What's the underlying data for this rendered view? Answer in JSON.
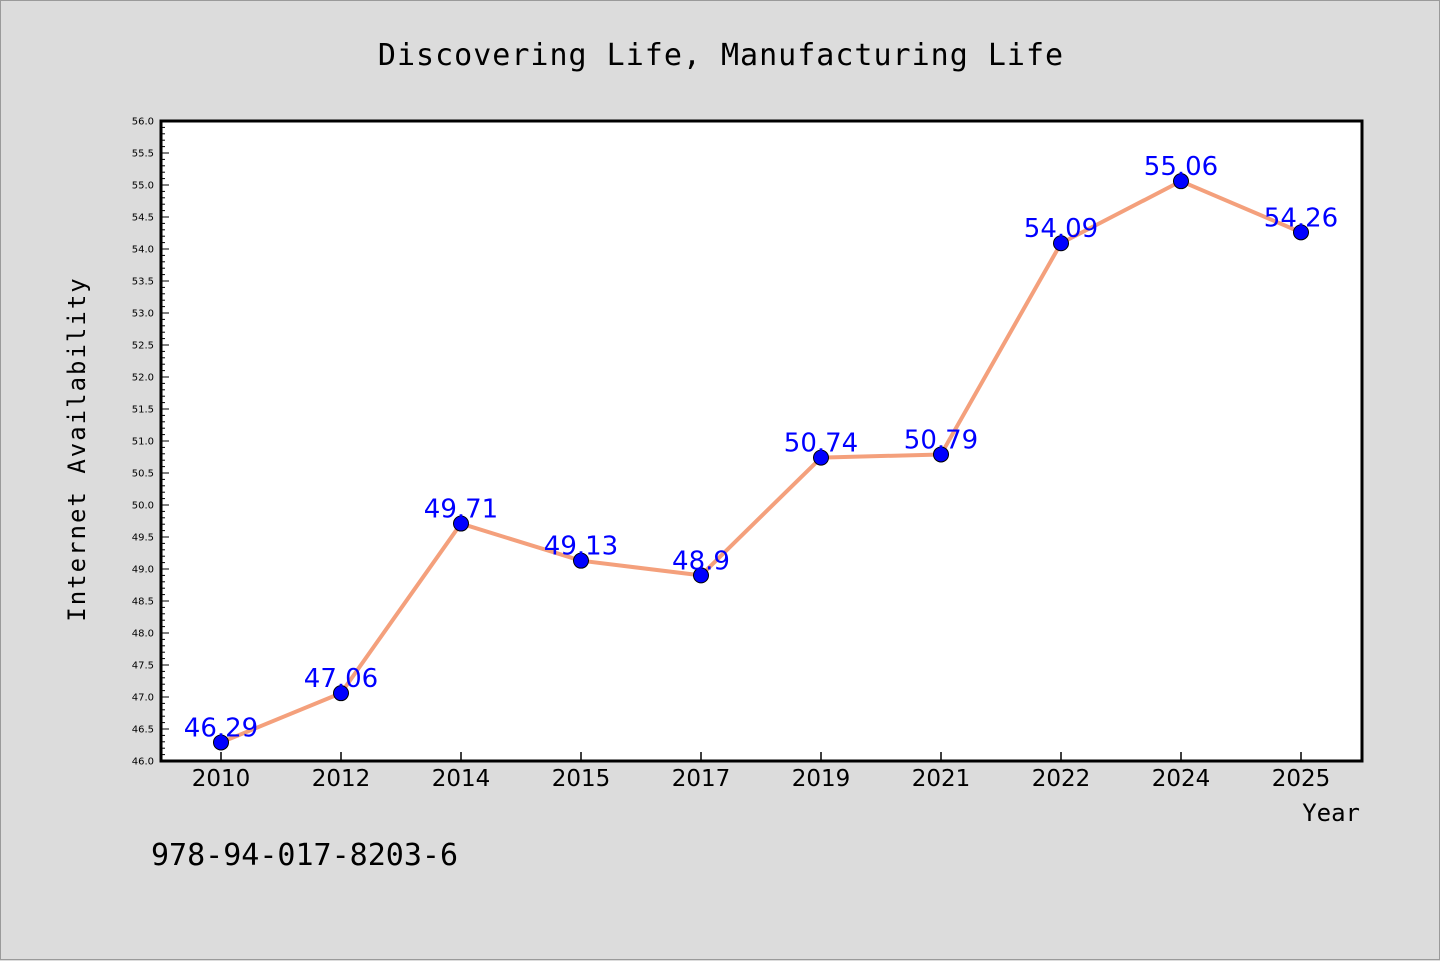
{
  "chart_data": {
    "type": "line",
    "title": "Discovering Life, Manufacturing Life",
    "xlabel": "Year",
    "ylabel": "Internet Availability",
    "categories": [
      "2010",
      "2012",
      "2014",
      "2015",
      "2017",
      "2019",
      "2021",
      "2022",
      "2024",
      "2025"
    ],
    "series": [
      {
        "values": [
          46.29,
          47.06,
          49.71,
          49.13,
          48.9,
          50.74,
          50.79,
          54.09,
          55.06,
          54.26
        ],
        "data_labels": [
          "46.29",
          "47.06",
          "49.71",
          "49.13",
          "48.9",
          "50.74",
          "50.79",
          "54.09",
          "55.06",
          "54.26"
        ],
        "line_color": "#f4a07c",
        "marker_color": "#0000ff"
      }
    ],
    "ylim": [
      46.0,
      56.0
    ],
    "y_ticks": [
      "46.0",
      "46.5",
      "47.0",
      "47.5",
      "48.0",
      "48.5",
      "49.0",
      "49.5",
      "50.0",
      "50.5",
      "51.0",
      "51.5",
      "52.0",
      "52.5",
      "53.0",
      "53.5",
      "54.0",
      "54.5",
      "55.0",
      "55.5",
      "56.0"
    ],
    "grid": false,
    "legend": "none",
    "plot_background": "#ffffff",
    "page_background": "#dcdcdc"
  },
  "footer": {
    "isbn": "978-94-017-8203-6"
  }
}
